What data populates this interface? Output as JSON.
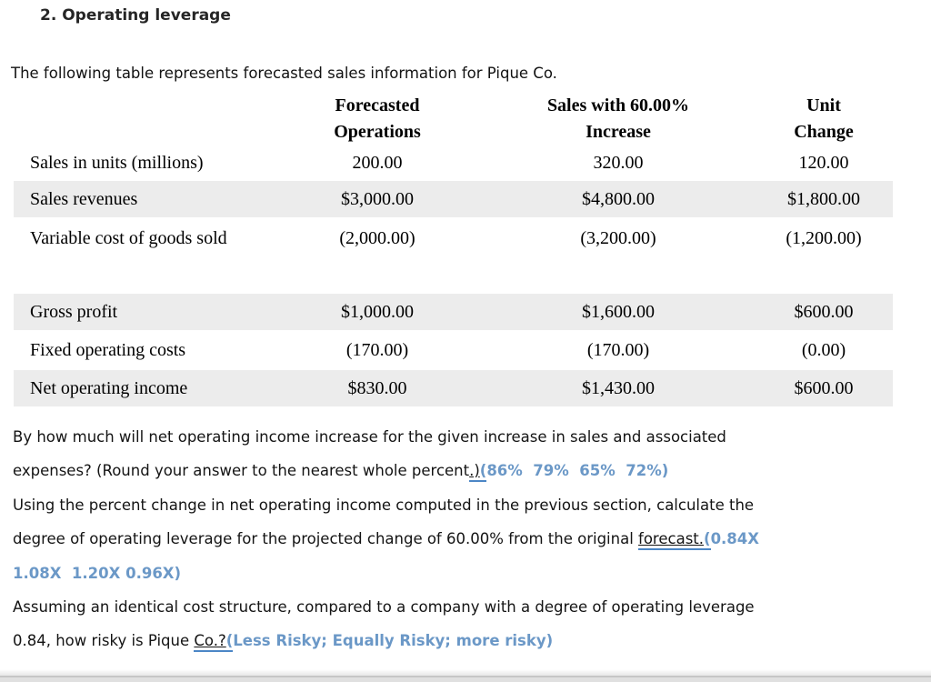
{
  "colors": {
    "answer_blue": "#6b98c7",
    "underline_blue": "#4c86c6",
    "row_shade": "#ececec"
  },
  "header": {
    "title": "2. Operating leverage"
  },
  "intro": "The following table represents forecasted sales information for Pique Co.",
  "table": {
    "headers": [
      {
        "line1": "Forecasted",
        "line2": "Operations"
      },
      {
        "line1": "Sales with 60.00%",
        "line2": "Increase"
      },
      {
        "line1": "Unit",
        "line2": "Change"
      }
    ],
    "rows": [
      {
        "label": "Sales in units (millions)",
        "forecasted": "200.00",
        "increase": "320.00",
        "change": "120.00"
      },
      {
        "label": "Sales revenues",
        "forecasted": "$3,000.00",
        "increase": "$4,800.00",
        "change": "$1,800.00"
      },
      {
        "label": "Variable cost of goods sold",
        "forecasted": "(2,000.00)",
        "increase": "(3,200.00)",
        "change": "(1,200.00)"
      },
      {
        "label": "Gross profit",
        "forecasted": "$1,000.00",
        "increase": "$1,600.00",
        "change": "$600.00"
      },
      {
        "label": "Fixed operating costs",
        "forecasted": "(170.00)",
        "increase": "(170.00)",
        "change": "(0.00)"
      },
      {
        "label": "Net operating income",
        "forecasted": "$830.00",
        "increase": "$1,430.00",
        "change": "$600.00"
      }
    ]
  },
  "questions": {
    "q1": {
      "line1": "By how much will net operating income increase for the given increase in sales and associated",
      "line2_text": "expenses? (Round your answer to the nearest whole percent",
      "line2_underlined": ".)",
      "line2_paren": "(",
      "line2_options": "86%  79%  65%  72%)"
    },
    "q2": {
      "line1": "Using the percent change in net operating income computed in the previous section, calculate the",
      "line2_text": "degree of operating leverage for the projected change of 60.00% from the original ",
      "line2_underlined": "forecast.",
      "line2_paren": "(",
      "line2_options": "0.84X",
      "line3_options": "1.08X  1.20X 0.96X)"
    },
    "q3": {
      "line1": "Assuming an identical cost structure, compared to a company with a degree of operating leverage",
      "line2_text": "0.84, how risky is Pique ",
      "line2_underlined": "Co.?",
      "line2_paren": "(",
      "line2_options": "Less Risky; Equally Risky; more risky)"
    }
  }
}
